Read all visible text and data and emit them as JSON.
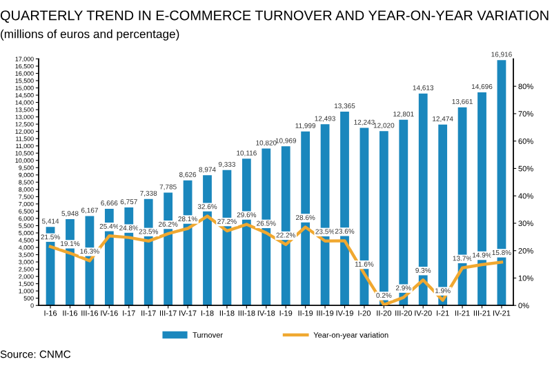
{
  "chart_data": {
    "type": "bar",
    "title": "QUARTERLY TREND IN E-COMMERCE TURNOVER AND YEAR-ON-YEAR VARIATION",
    "subtitle": "(millions of euros and percentage)",
    "categories": [
      "I-16",
      "II-16",
      "III-16",
      "IV-16",
      "I-17",
      "II-17",
      "III-17",
      "IV-17",
      "I-18",
      "II-18",
      "III-18",
      "IV-18",
      "I-19",
      "II-19",
      "III-19",
      "IV-19",
      "I-20",
      "II-20",
      "III-20",
      "IV-20",
      "I-21",
      "II-21",
      "III-21",
      "IV-21"
    ],
    "series": [
      {
        "name": "Turnover",
        "color": "#1a87bd",
        "values": [
          5414,
          5948,
          6167,
          6666,
          6757,
          7338,
          7785,
          8626,
          8974,
          9333,
          10116,
          10820,
          10969,
          11999,
          12493,
          13365,
          12243,
          12020,
          12801,
          14613,
          12474,
          13661,
          14696,
          16916
        ],
        "value_labels": [
          "5,414",
          "5,948",
          "6,167",
          "6,666",
          "6,757",
          "7,338",
          "7,785",
          "8,626",
          "8,974",
          "9,333",
          "10,116",
          "10,820",
          "10,969",
          "11,999",
          "12,493",
          "13,365",
          "12,243",
          "12,020",
          "12,801",
          "14,613",
          "12,474",
          "13,661",
          "14,696",
          "16,916"
        ]
      },
      {
        "name": "Year-on-year variation",
        "type": "line",
        "axis": "y2",
        "color": "#f0a830",
        "values": [
          21.5,
          19.1,
          16.3,
          25.4,
          24.8,
          23.5,
          26.2,
          28.1,
          32.6,
          27.2,
          29.6,
          26.5,
          22.2,
          28.6,
          23.5,
          23.6,
          11.6,
          0.2,
          2.9,
          9.3,
          1.9,
          13.7,
          14.9,
          15.8
        ],
        "value_labels": [
          "21.5%",
          "19.1%",
          "16.3%",
          "25.4%",
          "24.8%",
          "23.5%",
          "26.2%",
          "28.1%",
          "32.6%",
          "27.2%",
          "29.6%",
          "26.5%",
          "22.2%",
          "28.6%",
          "23.5%",
          "23.6%",
          "11.6%",
          "0.2%",
          "2.9%",
          "9.3%",
          "1.9%",
          "13.7%",
          "14.9%",
          "15.8%"
        ]
      }
    ],
    "ylim": [
      0,
      17000
    ],
    "yticks": [
      0,
      500,
      {
        "value": 1000,
        "label": "1,000"
      },
      {
        "value": 1500,
        "label": "1,500"
      },
      {
        "value": 2000,
        "label": "2,000"
      },
      {
        "value": 2500,
        "label": "2,500"
      },
      {
        "value": 3000,
        "label": "3,000"
      },
      {
        "value": 3500,
        "label": "3,500"
      },
      {
        "value": 4000,
        "label": "4,000"
      },
      {
        "value": 4500,
        "label": "4,500"
      },
      {
        "value": 5000,
        "label": "5,000"
      },
      {
        "value": 5500,
        "label": "5,500"
      },
      {
        "value": 6000,
        "label": "6,000"
      },
      {
        "value": 6500,
        "label": "6,500"
      },
      {
        "value": 7000,
        "label": "7,000"
      },
      {
        "value": 7500,
        "label": "7,500"
      },
      {
        "value": 8000,
        "label": "8,000"
      },
      {
        "value": 8500,
        "label": "8,500"
      },
      {
        "value": 9000,
        "label": "9,000"
      },
      {
        "value": 9500,
        "label": "9,500"
      },
      {
        "value": 10000,
        "label": "10,000"
      },
      {
        "value": 10500,
        "label": "10,500"
      },
      {
        "value": 11000,
        "label": "11,000"
      },
      {
        "value": 11500,
        "label": "11,500"
      },
      {
        "value": 12000,
        "label": "12,000"
      },
      {
        "value": 12500,
        "label": "12,500"
      },
      {
        "value": 13000,
        "label": "13,000"
      },
      {
        "value": 13500,
        "label": "13,500"
      },
      {
        "value": 14000,
        "label": "14,000"
      },
      {
        "value": 14500,
        "label": "14,500"
      },
      {
        "value": 15000,
        "label": "15,000"
      },
      {
        "value": 15500,
        "label": "15,500"
      },
      {
        "value": 16000,
        "label": "16,000"
      },
      {
        "value": 16500,
        "label": "16,500"
      },
      {
        "value": 17000,
        "label": "17,000"
      }
    ],
    "y2lim": [
      0,
      90
    ],
    "y2ticks": [
      {
        "value": 0,
        "label": "0%"
      },
      {
        "value": 10,
        "label": "10%"
      },
      {
        "value": 20,
        "label": "20%"
      },
      {
        "value": 30,
        "label": "30%"
      },
      {
        "value": 40,
        "label": "40%"
      },
      {
        "value": 50,
        "label": "50%"
      },
      {
        "value": 60,
        "label": "60%"
      },
      {
        "value": 70,
        "label": "70%"
      },
      {
        "value": 80,
        "label": "80%"
      }
    ],
    "grid": false,
    "legend": "bottom",
    "marker": "none",
    "line_style": "solid",
    "annotations": [
      "Source: CNMC"
    ]
  }
}
